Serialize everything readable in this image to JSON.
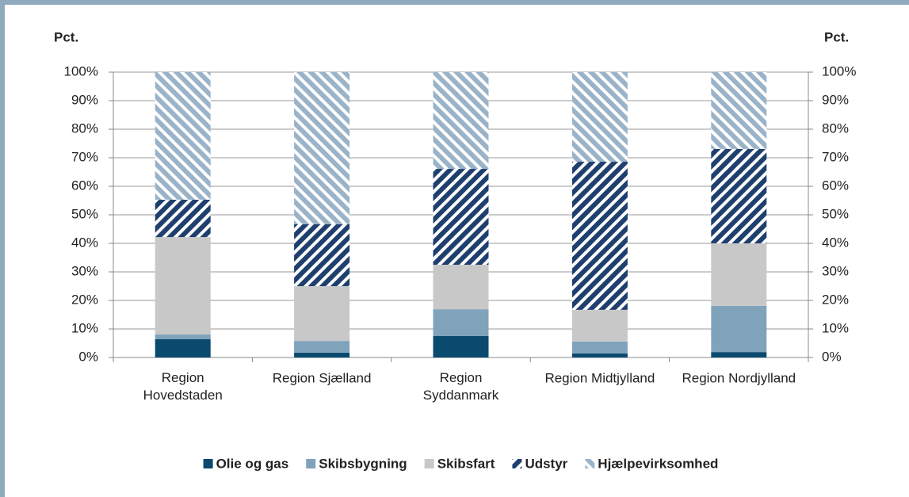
{
  "chart_data": {
    "type": "stacked_bar",
    "y_label": "Pct.",
    "y2_label": "Pct.",
    "categories": [
      "Region\nHovedstaden",
      "Region Sjælland",
      "Region\nSyddanmark",
      "Region Midtjylland",
      "Region Nordjylland"
    ],
    "series": [
      {
        "name": "Olie og gas",
        "color": "#0b4a6f",
        "hatch": "none",
        "values": [
          6.4,
          1.7,
          7.5,
          1.4,
          1.9
        ]
      },
      {
        "name": "Skibsbygning",
        "color": "#7fa3bb",
        "hatch": "none",
        "values": [
          1.7,
          4.1,
          9.4,
          4.2,
          16.2
        ]
      },
      {
        "name": "Skibsfart",
        "color": "#c8c8c8",
        "hatch": "none",
        "values": [
          34.1,
          19.2,
          15.6,
          11.1,
          21.9
        ]
      },
      {
        "name": "Udstyr",
        "color": "#1f3f6e",
        "hatch": "forward",
        "values": [
          13.1,
          21.7,
          33.6,
          51.9,
          33.1
        ]
      },
      {
        "name": "Hjælpevirksomhed",
        "color": "#9ab3c8",
        "hatch": "backward",
        "values": [
          44.7,
          53.3,
          33.9,
          31.4,
          26.9
        ]
      }
    ],
    "ylim": [
      0,
      100
    ],
    "yticks": [
      {
        "value": 0,
        "label": "0%"
      },
      {
        "value": 10,
        "label": "10%"
      },
      {
        "value": 20,
        "label": "20%"
      },
      {
        "value": 30,
        "label": "30%"
      },
      {
        "value": 40,
        "label": "40%"
      },
      {
        "value": 50,
        "label": "50%"
      },
      {
        "value": 60,
        "label": "60%"
      },
      {
        "value": 70,
        "label": "70%"
      },
      {
        "value": 80,
        "label": "80%"
      },
      {
        "value": 90,
        "label": "90%"
      },
      {
        "value": 100,
        "label": "100%"
      }
    ],
    "y2lim": [
      0,
      100
    ],
    "y2ticks": [
      {
        "value": 0,
        "label": "0%"
      },
      {
        "value": 10,
        "label": "10%"
      },
      {
        "value": 20,
        "label": "20%"
      },
      {
        "value": 30,
        "label": "30%"
      },
      {
        "value": 40,
        "label": "40%"
      },
      {
        "value": 50,
        "label": "50%"
      },
      {
        "value": 60,
        "label": "60%"
      },
      {
        "value": 70,
        "label": "70%"
      },
      {
        "value": 80,
        "label": "80%"
      },
      {
        "value": 90,
        "label": "90%"
      },
      {
        "value": 100,
        "label": "100%"
      }
    ],
    "grid": true,
    "legend": "bottom"
  }
}
